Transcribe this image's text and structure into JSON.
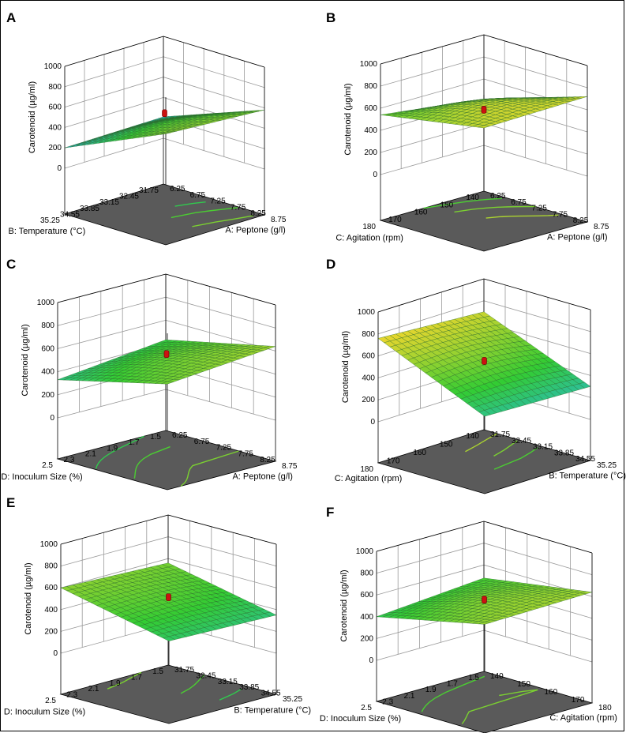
{
  "figure": {
    "colors": {
      "floor": "#5a5a5a",
      "grid": "#9a9a9a",
      "surface_low": "#29b7d9",
      "surface_mid": "#33cc33",
      "surface_high": "#e7d62e",
      "marker": "#cc1111"
    }
  },
  "chart_data": [
    {
      "panel": "A",
      "type": "surface3d",
      "zlabel": "Carotenoid (µg/ml)",
      "zticks": [
        "1000",
        "800",
        "600",
        "400",
        "200",
        "0"
      ],
      "zlim": [
        0,
        1000
      ],
      "xlabel": "A: Peptone (g/l)",
      "xticks": [
        "6.25",
        "6.75",
        "7.25",
        "7.75",
        "8.25",
        "8.75"
      ],
      "ylabel": "B: Temperature (°C)",
      "yticks": [
        "31.75",
        "32.45",
        "33.15",
        "33.85",
        "34.55",
        "35.25"
      ],
      "surface": {
        "x_range": [
          6.25,
          8.75
        ],
        "y_range": [
          31.75,
          35.25
        ],
        "z00": 210,
        "z10": 580,
        "z01": 200,
        "z11": 640,
        "curv": 50
      },
      "point": {
        "x": 7.5,
        "y": 33.5,
        "z": 540
      }
    },
    {
      "panel": "B",
      "type": "surface3d",
      "zlabel": "Carotenoid (µg/ml)",
      "zticks": [
        "1000",
        "800",
        "600",
        "400",
        "200",
        "0"
      ],
      "zlim": [
        0,
        1000
      ],
      "xlabel": "A: Peptone (g/l)",
      "xticks": [
        "6.25",
        "6.75",
        "7.25",
        "7.75",
        "8.25",
        "8.75"
      ],
      "ylabel": "C: Agitation (rpm)",
      "yticks": [
        "140",
        "150",
        "160",
        "170",
        "180"
      ],
      "surface": {
        "x_range": [
          6.25,
          8.75
        ],
        "y_range": [
          140,
          180
        ],
        "z00": 420,
        "z10": 720,
        "z01": 540,
        "z11": 700,
        "curv": 70
      },
      "point": {
        "x": 7.5,
        "y": 160,
        "z": 590
      }
    },
    {
      "panel": "C",
      "type": "surface3d",
      "zlabel": "Carotenoid (µg/ml)",
      "zticks": [
        "1000",
        "800",
        "600",
        "400",
        "200",
        "0"
      ],
      "zlim": [
        0,
        1000
      ],
      "xlabel": "A: Peptone (g/l)",
      "xticks": [
        "6.25",
        "6.75",
        "7.25",
        "7.75",
        "8.25",
        "8.75"
      ],
      "ylabel": "D: Inoculum Size (%)",
      "yticks": [
        "1.5",
        "1.7",
        "1.9",
        "2.1",
        "2.3",
        "2.5"
      ],
      "surface": {
        "x_range": [
          6.25,
          8.75
        ],
        "y_range": [
          1.5,
          2.5
        ],
        "z00": 430,
        "z10": 640,
        "z01": 330,
        "z11": 560,
        "curv": 40
      },
      "point": {
        "x": 7.5,
        "y": 2.0,
        "z": 560
      }
    },
    {
      "panel": "D",
      "type": "surface3d",
      "zlabel": "Carotenoid (µg/ml)",
      "zticks": [
        "1000",
        "800",
        "600",
        "400",
        "200",
        "0"
      ],
      "zlim": [
        0,
        1000
      ],
      "xlabel": "B: Temperature (°C)",
      "xticks": [
        "31.75",
        "32.45",
        "33.15",
        "33.85",
        "34.55",
        "35.25"
      ],
      "ylabel": "C: Agitation (rpm)",
      "yticks": [
        "140",
        "150",
        "160",
        "170",
        "180"
      ],
      "surface": {
        "x_range": [
          31.75,
          35.25
        ],
        "y_range": [
          140,
          180
        ],
        "z00": 700,
        "z10": 300,
        "z01": 760,
        "z11": 330,
        "curv": 40
      },
      "point": {
        "x": 33.5,
        "y": 160,
        "z": 540
      }
    },
    {
      "panel": "E",
      "type": "surface3d",
      "zlabel": "Carotenoid (µg/ml)",
      "zticks": [
        "1000",
        "800",
        "600",
        "400",
        "200",
        "0"
      ],
      "zlim": [
        0,
        1000
      ],
      "xlabel": "B: Temperature (°C)",
      "xticks": [
        "31.75",
        "32.45",
        "33.15",
        "33.85",
        "34.55",
        "35.25"
      ],
      "ylabel": "D: Inoculum Size (%)",
      "yticks": [
        "1.5",
        "1.7",
        "1.9",
        "2.1",
        "2.3",
        "2.5"
      ],
      "surface": {
        "x_range": [
          31.75,
          35.25
        ],
        "y_range": [
          1.5,
          2.5
        ],
        "z00": 560,
        "z10": 350,
        "z01": 600,
        "z11": 380,
        "curv": 30
      },
      "point": {
        "x": 33.5,
        "y": 2.0,
        "z": 510
      }
    },
    {
      "panel": "F",
      "type": "surface3d",
      "zlabel": "Carotenoid (µg/ml)",
      "zticks": [
        "1000",
        "800",
        "600",
        "400",
        "200",
        "0"
      ],
      "zlim": [
        0,
        1000
      ],
      "xlabel": "C: Agitation (rpm)",
      "xticks": [
        "140",
        "150",
        "160",
        "170",
        "180"
      ],
      "ylabel": "D: Inoculum Size (%)",
      "yticks": [
        "1.5",
        "1.7",
        "1.9",
        "2.1",
        "2.3",
        "2.5"
      ],
      "surface": {
        "x_range": [
          140,
          180
        ],
        "y_range": [
          1.5,
          2.5
        ],
        "z00": 480,
        "z10": 640,
        "z01": 400,
        "z11": 620,
        "curv": 40
      },
      "point": {
        "x": 160,
        "y": 2.0,
        "z": 560
      }
    }
  ]
}
